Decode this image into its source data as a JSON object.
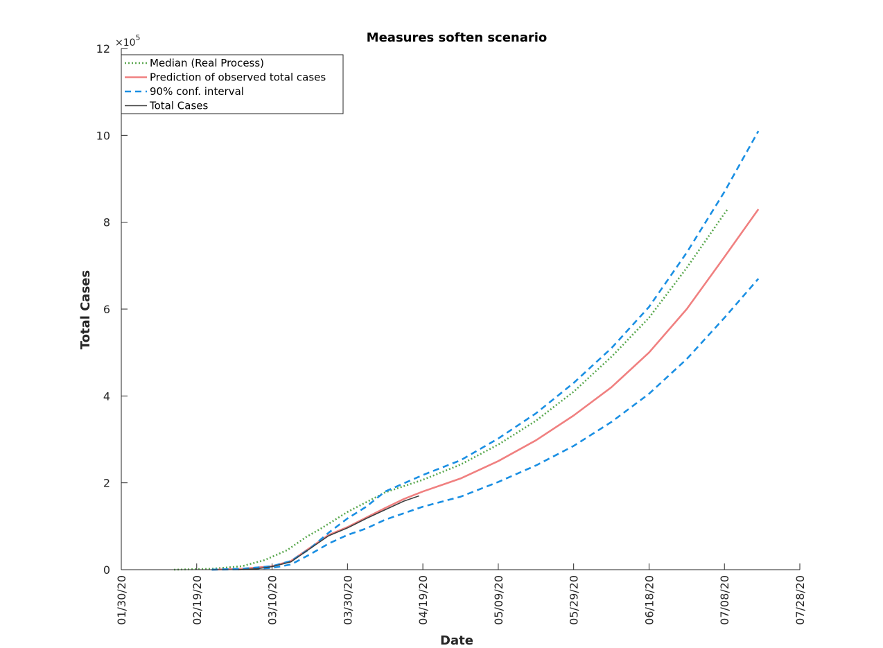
{
  "chart_data": {
    "type": "line",
    "title": "Measures soften scenario",
    "xlabel": "Date",
    "ylabel": "Total Cases",
    "y_exponent_label": "×10",
    "y_exponent_power": "5",
    "ylim": [
      0,
      12
    ],
    "yticks": [
      0,
      2,
      4,
      6,
      8,
      10,
      12
    ],
    "xlim": [
      "2020-01-30",
      "2020-07-28"
    ],
    "xtick_dates": [
      "2020-01-30",
      "2020-02-19",
      "2020-03-10",
      "2020-03-30",
      "2020-04-19",
      "2020-05-09",
      "2020-05-29",
      "2020-06-18",
      "2020-07-08",
      "2020-07-28"
    ],
    "xtick_labels": [
      "01/30/20",
      "02/19/20",
      "03/10/20",
      "03/30/20",
      "04/19/20",
      "05/09/20",
      "05/29/20",
      "06/18/20",
      "07/08/20",
      "07/28/20"
    ],
    "y_scale_note": "values in units of 10^5 total cases",
    "grid": false,
    "legend_position": "top-left",
    "series": [
      {
        "name": "Median (Real Process)",
        "color": "#5aa84f",
        "style": "dotted",
        "points": [
          [
            "2020-02-13",
            0.0
          ],
          [
            "2020-02-23",
            0.02
          ],
          [
            "2020-03-02",
            0.08
          ],
          [
            "2020-03-08",
            0.22
          ],
          [
            "2020-03-14",
            0.45
          ],
          [
            "2020-03-19",
            0.75
          ],
          [
            "2020-03-23",
            0.95
          ],
          [
            "2020-03-30",
            1.33
          ],
          [
            "2020-04-09",
            1.78
          ],
          [
            "2020-04-19",
            2.07
          ],
          [
            "2020-04-29",
            2.42
          ],
          [
            "2020-05-09",
            2.88
          ],
          [
            "2020-05-19",
            3.43
          ],
          [
            "2020-05-29",
            4.1
          ],
          [
            "2020-06-08",
            4.9
          ],
          [
            "2020-06-18",
            5.8
          ],
          [
            "2020-06-28",
            6.95
          ],
          [
            "2020-07-08",
            8.2
          ],
          [
            "2020-07-09",
            8.32
          ]
        ]
      },
      {
        "name": "Prediction of observed total cases",
        "color": "#f08080",
        "style": "solid",
        "points": [
          [
            "2020-02-23",
            0.0
          ],
          [
            "2020-03-02",
            0.02
          ],
          [
            "2020-03-10",
            0.08
          ],
          [
            "2020-03-15",
            0.2
          ],
          [
            "2020-03-20",
            0.5
          ],
          [
            "2020-03-25",
            0.8
          ],
          [
            "2020-03-30",
            0.98
          ],
          [
            "2020-04-04",
            1.2
          ],
          [
            "2020-04-09",
            1.42
          ],
          [
            "2020-04-14",
            1.63
          ],
          [
            "2020-04-19",
            1.8
          ],
          [
            "2020-04-29",
            2.1
          ],
          [
            "2020-05-09",
            2.5
          ],
          [
            "2020-05-19",
            2.98
          ],
          [
            "2020-05-29",
            3.55
          ],
          [
            "2020-06-08",
            4.2
          ],
          [
            "2020-06-18",
            5.0
          ],
          [
            "2020-06-28",
            6.0
          ],
          [
            "2020-07-08",
            7.2
          ],
          [
            "2020-07-17",
            8.3
          ]
        ]
      },
      {
        "name": "90% conf. interval",
        "color": "#1a8fe3",
        "style": "dashed",
        "points": [
          [
            "2020-02-23",
            0.0
          ],
          [
            "2020-03-02",
            0.02
          ],
          [
            "2020-03-10",
            0.08
          ],
          [
            "2020-03-15",
            0.2
          ],
          [
            "2020-03-20",
            0.48
          ],
          [
            "2020-03-25",
            0.85
          ],
          [
            "2020-03-30",
            1.18
          ],
          [
            "2020-04-04",
            1.45
          ],
          [
            "2020-04-09",
            1.8
          ],
          [
            "2020-04-19",
            2.18
          ],
          [
            "2020-04-29",
            2.52
          ],
          [
            "2020-05-09",
            3.02
          ],
          [
            "2020-05-19",
            3.6
          ],
          [
            "2020-05-29",
            4.3
          ],
          [
            "2020-06-08",
            5.1
          ],
          [
            "2020-06-18",
            6.05
          ],
          [
            "2020-06-28",
            7.3
          ],
          [
            "2020-07-08",
            8.7
          ],
          [
            "2020-07-17",
            10.1
          ]
        ]
      },
      {
        "name": "",
        "color": "#1a8fe3",
        "style": "dashed",
        "points": [
          [
            "2020-02-23",
            0.0
          ],
          [
            "2020-03-02",
            0.01
          ],
          [
            "2020-03-10",
            0.04
          ],
          [
            "2020-03-15",
            0.12
          ],
          [
            "2020-03-20",
            0.35
          ],
          [
            "2020-03-25",
            0.6
          ],
          [
            "2020-03-30",
            0.8
          ],
          [
            "2020-04-04",
            0.95
          ],
          [
            "2020-04-09",
            1.15
          ],
          [
            "2020-04-19",
            1.45
          ],
          [
            "2020-04-29",
            1.68
          ],
          [
            "2020-05-09",
            2.02
          ],
          [
            "2020-05-19",
            2.4
          ],
          [
            "2020-05-29",
            2.85
          ],
          [
            "2020-06-08",
            3.4
          ],
          [
            "2020-06-18",
            4.05
          ],
          [
            "2020-06-28",
            4.85
          ],
          [
            "2020-07-08",
            5.8
          ],
          [
            "2020-07-17",
            6.7
          ]
        ]
      },
      {
        "name": "Total Cases",
        "color": "#404040",
        "style": "solid",
        "points": [
          [
            "2020-03-01",
            0.0
          ],
          [
            "2020-03-06",
            0.02
          ],
          [
            "2020-03-10",
            0.07
          ],
          [
            "2020-03-15",
            0.18
          ],
          [
            "2020-03-20",
            0.48
          ],
          [
            "2020-03-25",
            0.78
          ],
          [
            "2020-03-30",
            0.96
          ],
          [
            "2020-04-04",
            1.18
          ],
          [
            "2020-04-09",
            1.38
          ],
          [
            "2020-04-14",
            1.58
          ],
          [
            "2020-04-18",
            1.7
          ]
        ]
      }
    ]
  }
}
